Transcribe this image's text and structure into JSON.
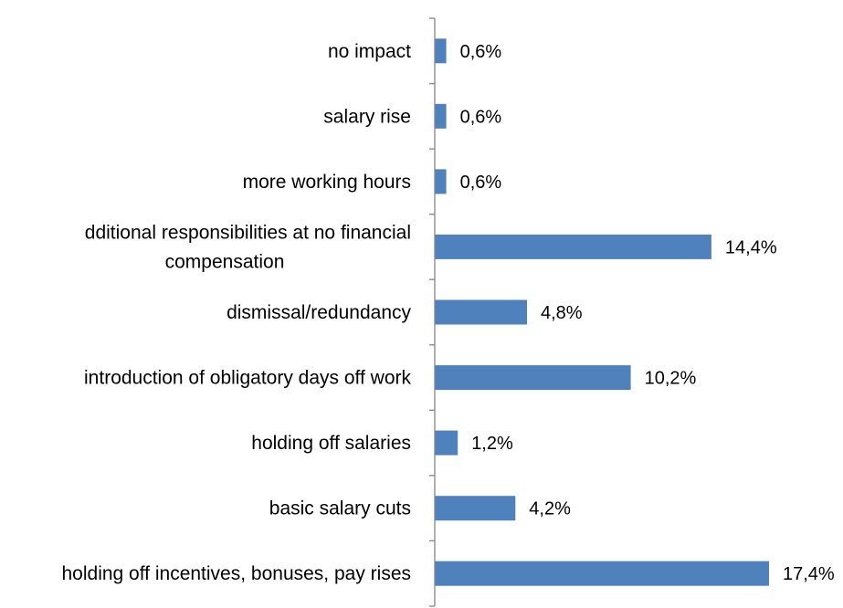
{
  "chart_data": {
    "type": "bar",
    "orientation": "horizontal",
    "categories": [
      "no impact",
      "salary rise",
      "more working hours",
      "dditional responsibilities at no financial compensation",
      "dismissal/redundancy",
      "introduction of obligatory days off work",
      "holding off salaries",
      "basic salary cuts",
      "holding off incentives, bonuses, pay rises"
    ],
    "category_lines": [
      [
        "no impact"
      ],
      [
        "salary rise"
      ],
      [
        "more working hours"
      ],
      [
        "dditional responsibilities at no financial",
        "compensation"
      ],
      [
        "dismissal/redundancy"
      ],
      [
        "introduction of obligatory days off work"
      ],
      [
        "holding off salaries"
      ],
      [
        "basic salary cuts"
      ],
      [
        "holding off incentives, bonuses, pay rises"
      ]
    ],
    "values": [
      0.6,
      0.6,
      0.6,
      14.4,
      4.8,
      10.2,
      1.2,
      4.2,
      17.4
    ],
    "value_labels": [
      "0,6%",
      "0,6%",
      "0,6%",
      "14,4%",
      "4,8%",
      "10,2%",
      "1,2%",
      "4,2%",
      "17,4%"
    ],
    "xlim": [
      0,
      17.4
    ],
    "grid": false,
    "legend": "none",
    "colors": {
      "bar": "#4f81bd",
      "axis": "#868686",
      "text": "#000000"
    }
  }
}
